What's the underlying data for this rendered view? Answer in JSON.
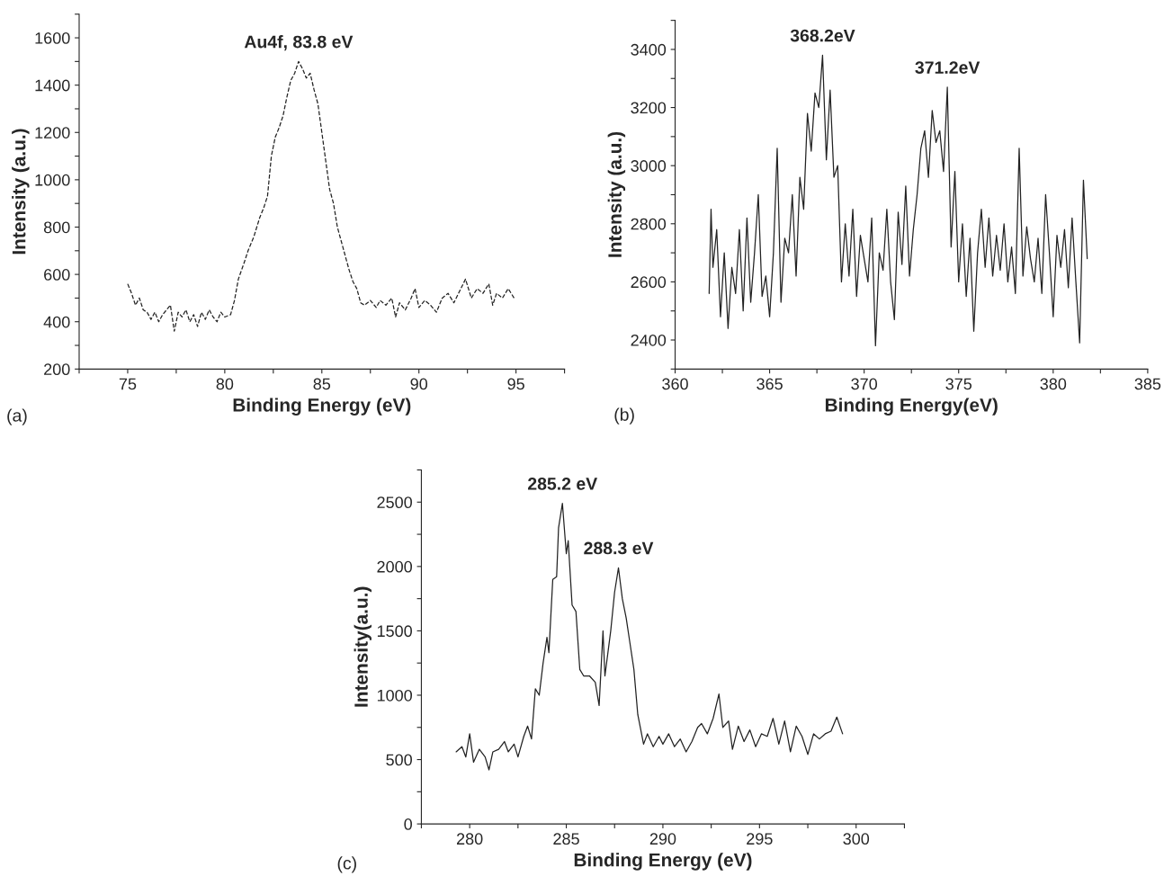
{
  "chart_data": [
    {
      "type": "line",
      "xlabel": "Binding Energy (eV)",
      "ylabel": "Intensity (a.u.)",
      "line_style": "dashed",
      "annotations": [
        {
          "text": "Au4f, 83.8 eV",
          "x": 83.8,
          "y": 1500
        },
        "(a)"
      ],
      "x": [
        75.0,
        75.2,
        75.4,
        75.6,
        75.8,
        76.0,
        76.2,
        76.4,
        76.6,
        76.8,
        77.0,
        77.2,
        77.4,
        77.6,
        77.8,
        78.0,
        78.2,
        78.4,
        78.6,
        78.8,
        79.0,
        79.2,
        79.4,
        79.6,
        79.8,
        80.0,
        80.3,
        80.5,
        80.7,
        81.0,
        81.2,
        81.5,
        81.8,
        82.0,
        82.2,
        82.4,
        82.6,
        82.8,
        83.0,
        83.2,
        83.4,
        83.6,
        83.8,
        84.0,
        84.2,
        84.4,
        84.6,
        84.8,
        85.0,
        85.2,
        85.4,
        85.6,
        85.8,
        86.0,
        86.2,
        86.4,
        86.6,
        86.8,
        87.0,
        87.2,
        87.5,
        87.8,
        88.0,
        88.3,
        88.6,
        88.8,
        89.0,
        89.3,
        89.6,
        89.8,
        90.0,
        90.3,
        90.6,
        90.9,
        91.2,
        91.5,
        91.8,
        92.1,
        92.4,
        92.7,
        93.0,
        93.3,
        93.6,
        93.8,
        94.0,
        94.3,
        94.6,
        94.9
      ],
      "series": [
        {
          "color": "#222222",
          "values": [
            560,
            520,
            470,
            500,
            450,
            440,
            410,
            440,
            400,
            430,
            450,
            470,
            360,
            440,
            420,
            450,
            400,
            430,
            380,
            440,
            410,
            450,
            420,
            400,
            440,
            420,
            430,
            490,
            580,
            650,
            700,
            760,
            840,
            880,
            930,
            1100,
            1180,
            1220,
            1270,
            1350,
            1420,
            1450,
            1500,
            1470,
            1430,
            1450,
            1380,
            1320,
            1200,
            1080,
            960,
            900,
            800,
            740,
            680,
            620,
            570,
            540,
            480,
            470,
            490,
            460,
            490,
            470,
            500,
            420,
            480,
            450,
            500,
            540,
            460,
            490,
            470,
            440,
            500,
            520,
            480,
            530,
            580,
            500,
            540,
            520,
            560,
            470,
            520,
            500,
            540,
            500
          ]
        }
      ],
      "xlim": [
        72.5,
        97.5
      ],
      "xticks": [
        {
          "value": 72.5,
          "label": null
        },
        75,
        {
          "value": 77.5,
          "label": null
        },
        80,
        {
          "value": 82.5,
          "label": null
        },
        85,
        {
          "value": 87.5,
          "label": null
        },
        90,
        {
          "value": 92.5,
          "label": null
        },
        95,
        {
          "value": 97.5,
          "label": null
        }
      ],
      "ylim": [
        200,
        1700
      ],
      "yticks": [
        200,
        {
          "value": 300,
          "label": null
        },
        400,
        {
          "value": 500,
          "label": null
        },
        600,
        {
          "value": 700,
          "label": null
        },
        800,
        {
          "value": 900,
          "label": null
        },
        1000,
        {
          "value": 1100,
          "label": null
        },
        1200,
        {
          "value": 1300,
          "label": null
        },
        1400,
        {
          "value": 1500,
          "label": null
        },
        1600,
        {
          "value": 1700,
          "label": null
        }
      ]
    },
    {
      "type": "line",
      "xlabel": "Binding Energy(eV)",
      "ylabel": "Intensity (a.u.)",
      "line_style": "solid",
      "annotations": [
        {
          "text": "368.2eV",
          "x": 367.8,
          "y": 3380
        },
        {
          "text": "371.2eV",
          "x": 374.4,
          "y": 3270
        },
        "(b)"
      ],
      "x": [
        361.8,
        361.9,
        362.0,
        362.2,
        362.4,
        362.6,
        362.8,
        363.0,
        363.2,
        363.4,
        363.6,
        363.8,
        364.0,
        364.2,
        364.4,
        364.6,
        364.8,
        365.0,
        365.2,
        365.4,
        365.6,
        365.8,
        366.0,
        366.2,
        366.4,
        366.6,
        366.8,
        367.0,
        367.2,
        367.4,
        367.6,
        367.8,
        368.0,
        368.2,
        368.4,
        368.6,
        368.8,
        369.0,
        369.2,
        369.4,
        369.6,
        369.8,
        370.0,
        370.2,
        370.4,
        370.6,
        370.8,
        371.0,
        371.2,
        371.4,
        371.6,
        371.8,
        372.0,
        372.2,
        372.4,
        372.6,
        372.8,
        373.0,
        373.2,
        373.4,
        373.6,
        373.8,
        374.0,
        374.2,
        374.4,
        374.6,
        374.8,
        375.0,
        375.2,
        375.4,
        375.6,
        375.8,
        376.0,
        376.2,
        376.4,
        376.6,
        376.8,
        377.0,
        377.2,
        377.4,
        377.6,
        377.8,
        378.0,
        378.2,
        378.4,
        378.6,
        378.8,
        379.0,
        379.2,
        379.4,
        379.6,
        379.8,
        380.0,
        380.2,
        380.4,
        380.6,
        380.8,
        381.0,
        381.2,
        381.4,
        381.6,
        381.8
      ],
      "series": [
        {
          "color": "#222222",
          "values": [
            2560,
            2850,
            2650,
            2780,
            2480,
            2700,
            2440,
            2650,
            2560,
            2780,
            2500,
            2820,
            2530,
            2700,
            2900,
            2550,
            2620,
            2480,
            2700,
            3060,
            2530,
            2750,
            2700,
            2900,
            2620,
            2960,
            2850,
            3180,
            3050,
            3250,
            3200,
            3380,
            3020,
            3260,
            2960,
            3000,
            2600,
            2800,
            2620,
            2850,
            2550,
            2760,
            2680,
            2600,
            2820,
            2380,
            2700,
            2640,
            2850,
            2600,
            2470,
            2840,
            2660,
            2930,
            2620,
            2780,
            2900,
            3060,
            3120,
            2960,
            3190,
            3080,
            3120,
            2980,
            3270,
            2720,
            2980,
            2600,
            2800,
            2550,
            2750,
            2430,
            2700,
            2850,
            2650,
            2820,
            2620,
            2760,
            2640,
            2800,
            2600,
            2720,
            2560,
            3060,
            2620,
            2790,
            2680,
            2600,
            2750,
            2560,
            2900,
            2700,
            2480,
            2760,
            2650,
            2780,
            2580,
            2820,
            2600,
            2390,
            2950,
            2680
          ]
        }
      ],
      "xlim": [
        360,
        385
      ],
      "xticks": [
        360,
        {
          "value": 362.5,
          "label": null
        },
        365,
        {
          "value": 367.5,
          "label": null
        },
        370,
        {
          "value": 372.5,
          "label": null
        },
        375,
        {
          "value": 377.5,
          "label": null
        },
        380,
        {
          "value": 382.5,
          "label": null
        },
        385
      ],
      "ylim": [
        2300,
        3500
      ],
      "yticks": [
        {
          "value": 2300,
          "label": null
        },
        2400,
        {
          "value": 2500,
          "label": null
        },
        2600,
        {
          "value": 2700,
          "label": null
        },
        2800,
        {
          "value": 2900,
          "label": null
        },
        3000,
        {
          "value": 3100,
          "label": null
        },
        3200,
        {
          "value": 3300,
          "label": null
        },
        3400,
        {
          "value": 3500,
          "label": null
        }
      ]
    },
    {
      "type": "line",
      "xlabel": "Binding Energy (eV)",
      "ylabel": "Intensity(a.u.)",
      "line_style": "solid",
      "annotations": [
        {
          "text": "285.2 eV",
          "x": 284.8,
          "y": 2490
        },
        {
          "text": "288.3 eV",
          "x": 287.7,
          "y": 1990
        },
        "(c)"
      ],
      "x": [
        279.3,
        279.6,
        279.8,
        280.0,
        280.2,
        280.5,
        280.8,
        281.0,
        281.2,
        281.5,
        281.8,
        282.0,
        282.3,
        282.5,
        282.8,
        283.0,
        283.2,
        283.4,
        283.6,
        283.8,
        284.0,
        284.1,
        284.3,
        284.5,
        284.6,
        284.8,
        285.0,
        285.1,
        285.3,
        285.5,
        285.7,
        285.9,
        286.2,
        286.5,
        286.7,
        286.9,
        287.0,
        287.3,
        287.5,
        287.7,
        287.9,
        288.1,
        288.3,
        288.5,
        288.7,
        289.0,
        289.2,
        289.5,
        289.8,
        290.0,
        290.3,
        290.6,
        290.9,
        291.2,
        291.5,
        291.8,
        292.0,
        292.3,
        292.6,
        292.9,
        293.1,
        293.4,
        293.6,
        293.9,
        294.2,
        294.5,
        294.8,
        295.1,
        295.4,
        295.7,
        296.0,
        296.3,
        296.6,
        296.9,
        297.2,
        297.5,
        297.8,
        298.1,
        298.4,
        298.7,
        299.0,
        299.3
      ],
      "series": [
        {
          "color": "#222222",
          "values": [
            560,
            600,
            520,
            700,
            480,
            580,
            520,
            420,
            560,
            580,
            640,
            560,
            620,
            520,
            680,
            760,
            660,
            1050,
            1000,
            1250,
            1450,
            1330,
            1900,
            1920,
            2300,
            2490,
            2100,
            2200,
            1700,
            1650,
            1200,
            1150,
            1150,
            1100,
            920,
            1500,
            1150,
            1500,
            1800,
            1990,
            1750,
            1600,
            1400,
            1200,
            850,
            620,
            700,
            600,
            680,
            620,
            700,
            600,
            660,
            560,
            640,
            750,
            780,
            700,
            820,
            1010,
            750,
            800,
            580,
            760,
            640,
            730,
            600,
            700,
            680,
            820,
            620,
            800,
            560,
            760,
            680,
            540,
            700,
            660,
            700,
            720,
            830,
            700
          ]
        }
      ],
      "xlim": [
        277.5,
        302.5
      ],
      "xticks": [
        {
          "value": 277.5,
          "label": null
        },
        280,
        {
          "value": 282.5,
          "label": null
        },
        285,
        {
          "value": 287.5,
          "label": null
        },
        290,
        {
          "value": 292.5,
          "label": null
        },
        295,
        {
          "value": 297.5,
          "label": null
        },
        300,
        {
          "value": 302.5,
          "label": null
        }
      ],
      "ylim": [
        0,
        2750
      ],
      "yticks": [
        0,
        {
          "value": 250,
          "label": null
        },
        500,
        {
          "value": 750,
          "label": null
        },
        1000,
        {
          "value": 1250,
          "label": null
        },
        1500,
        {
          "value": 1750,
          "label": null
        },
        2000,
        {
          "value": 2250,
          "label": null
        },
        2500,
        {
          "value": 2750,
          "label": null
        }
      ]
    }
  ]
}
